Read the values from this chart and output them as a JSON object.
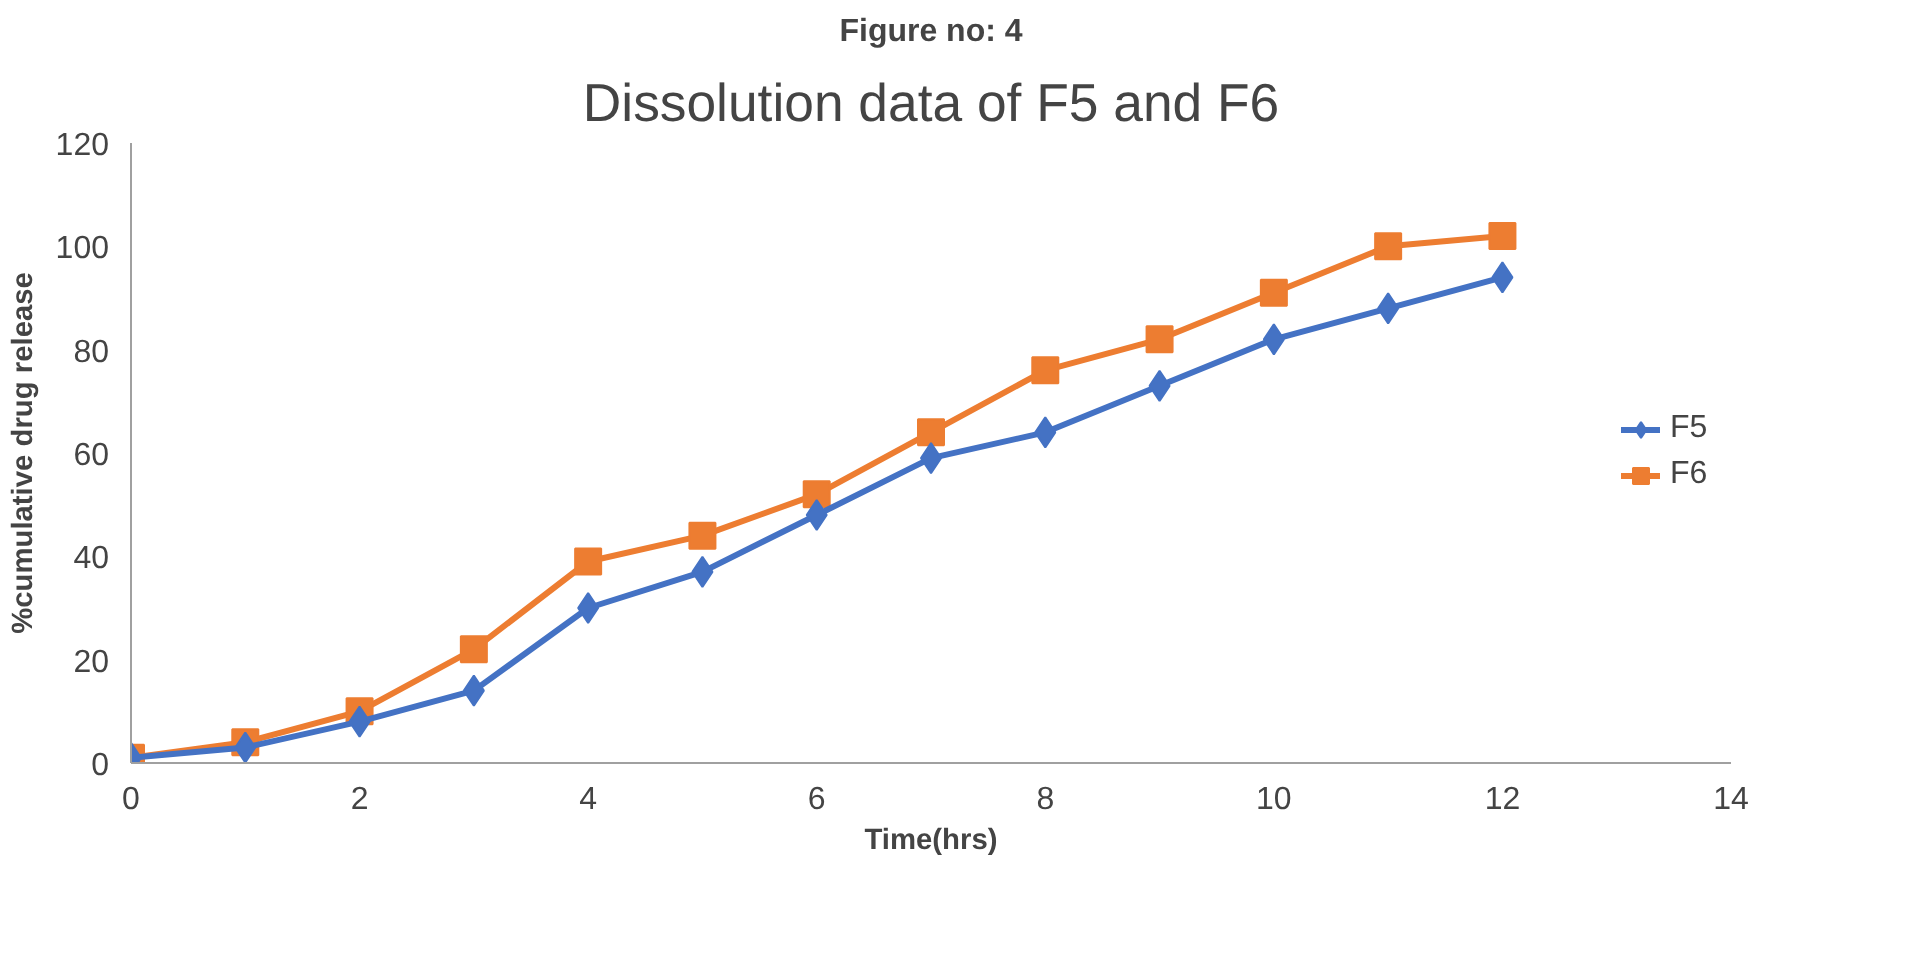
{
  "chart_data": {
    "type": "line",
    "title": "Dissolution data of F5 and F6",
    "xlabel": "Time(hrs)",
    "ylabel": "%cumulative drug release",
    "annotations": [
      "Figure no: 4"
    ],
    "x": [
      0,
      1,
      2,
      3,
      4,
      5,
      6,
      7,
      8,
      9,
      10,
      11,
      12
    ],
    "series": [
      {
        "name": "F5",
        "color": "#4472c4",
        "marker": "diamond",
        "values": [
          1,
          3,
          8,
          14,
          30,
          37,
          48,
          59,
          64,
          73,
          82,
          88,
          94
        ]
      },
      {
        "name": "F6",
        "color": "#ed7d31",
        "marker": "square",
        "values": [
          1,
          4,
          10,
          22,
          39,
          44,
          52,
          64,
          76,
          82,
          91,
          100,
          102
        ]
      }
    ],
    "xlim": [
      0,
      14
    ],
    "xticks": [
      0,
      2,
      4,
      6,
      8,
      10,
      12,
      14
    ],
    "ylim": [
      0,
      120
    ],
    "yticks": [
      0,
      20,
      40,
      60,
      80,
      100,
      120
    ],
    "grid": false,
    "legend": "right",
    "line_style": "solid"
  }
}
